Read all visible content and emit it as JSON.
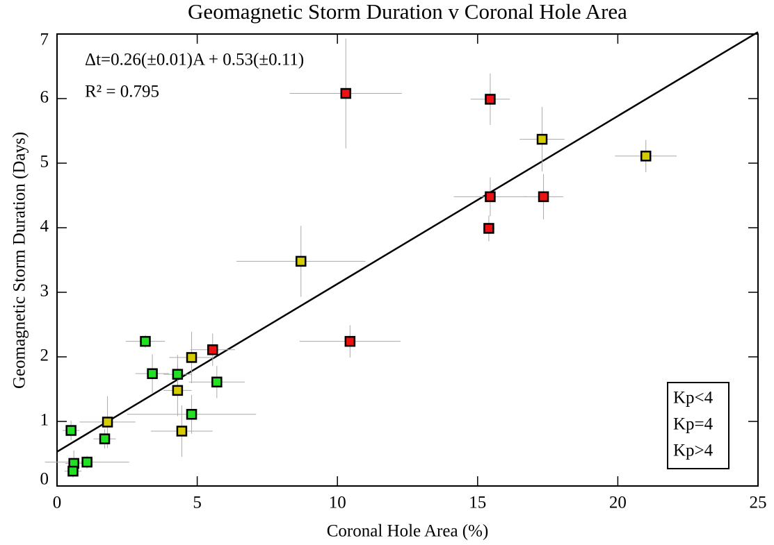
{
  "chart_data": {
    "type": "scatter",
    "title": "Geomagnetic Storm Duration v Coronal Hole Area",
    "x_label": "Coronal Hole Area (%)",
    "y_label": "Geomagnetic Storm Duration (Days)",
    "annotations": [
      "Δt=0.26(±0.01)A + 0.53(±0.11)",
      "R² = 0.795"
    ],
    "fit": {
      "slope": 0.26,
      "intercept": 0.53,
      "color": "#000000"
    },
    "xlim": [
      0,
      25
    ],
    "xticks": [
      0,
      5,
      10,
      15,
      20,
      25
    ],
    "ylim": [
      0,
      7
    ],
    "yticks": [
      0,
      1,
      2,
      3,
      4,
      5,
      6,
      7
    ],
    "grid": false,
    "legend": "lower right",
    "error_color": "#aaaaaa",
    "series": [
      {
        "name": "Kp<4",
        "color": "#22e022",
        "x": [
          0.5,
          0.6,
          0.57,
          1.07,
          1.7,
          3.15,
          3.4,
          4.3,
          4.8,
          5.7
        ],
        "values": [
          0.86,
          0.35,
          0.23,
          0.37,
          0.73,
          2.24,
          1.74,
          1.73,
          1.11,
          1.61
        ],
        "xerr": [
          0.3,
          0.3,
          0.3,
          1.5,
          0.4,
          0.7,
          0.6,
          0.5,
          2.3,
          1.0
        ],
        "yerr": [
          0.15,
          0.2,
          0.1,
          0.1,
          0.15,
          0.1,
          0.3,
          0.3,
          0.3,
          0.25
        ]
      },
      {
        "name": "Kp=4",
        "color": "#d4cc00",
        "x": [
          1.8,
          4.3,
          4.45,
          4.8,
          8.7,
          17.3,
          21.0
        ],
        "values": [
          0.99,
          1.48,
          0.85,
          1.99,
          3.48,
          5.37,
          5.11
        ],
        "xerr": [
          1.0,
          0.5,
          1.1,
          0.8,
          2.3,
          0.8,
          1.1
        ],
        "yerr": [
          0.4,
          0.4,
          0.4,
          0.4,
          0.55,
          0.5,
          0.25
        ]
      },
      {
        "name": "Kp>4",
        "color": "#ee1111",
        "x": [
          5.55,
          10.3,
          10.45,
          15.45,
          15.45,
          15.4,
          17.35
        ],
        "values": [
          2.11,
          6.08,
          2.24,
          5.99,
          4.48,
          3.99,
          4.48
        ],
        "xerr": [
          0.8,
          2.0,
          1.8,
          0.7,
          1.3,
          0.2,
          0.7
        ],
        "yerr": [
          0.25,
          0.85,
          0.25,
          0.4,
          0.3,
          0.2,
          0.35
        ]
      }
    ]
  }
}
